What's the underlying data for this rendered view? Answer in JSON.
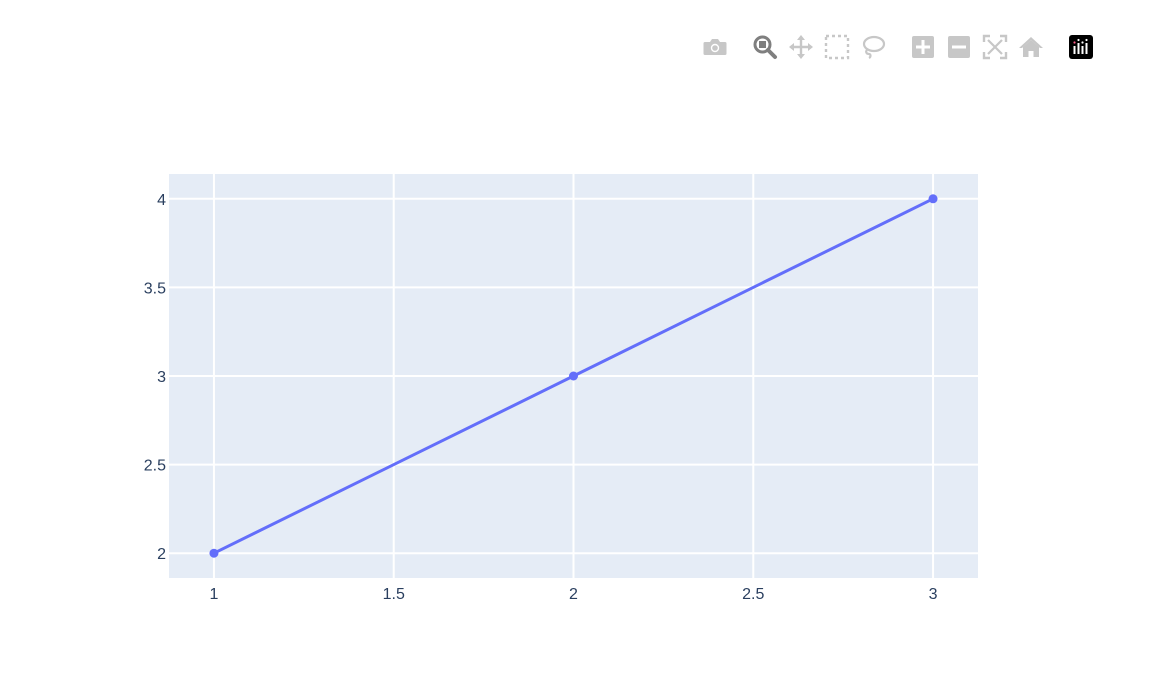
{
  "chart_data": {
    "type": "line",
    "x": [
      1,
      2,
      3
    ],
    "series": [
      {
        "values": [
          2,
          3,
          4
        ],
        "color": "#636efa",
        "mode": "lines+markers"
      }
    ],
    "xlim": [
      0.875,
      3.125
    ],
    "ylim": [
      1.86,
      4.14
    ],
    "xticks": [
      1,
      1.5,
      2,
      2.5,
      3
    ],
    "xtick_labels": [
      "1",
      "1.5",
      "2",
      "2.5",
      "3"
    ],
    "yticks": [
      2,
      2.5,
      3,
      3.5,
      4
    ],
    "ytick_labels": [
      "2",
      "2.5",
      "3",
      "3.5",
      "4"
    ],
    "grid": true,
    "plot_bg": "#e5ecf6",
    "grid_color": "#ffffff",
    "tick_color": "#2a3f5f"
  },
  "modebar": {
    "icon_color": "#c7c7c7",
    "active_icon_color": "#7f7f7f",
    "buttons": [
      "camera-icon",
      "zoom-icon",
      "pan-icon",
      "box-select-icon",
      "lasso-select-icon",
      "zoom-in-icon",
      "zoom-out-icon",
      "autoscale-icon",
      "home-icon",
      "plotly-logo-icon"
    ]
  }
}
